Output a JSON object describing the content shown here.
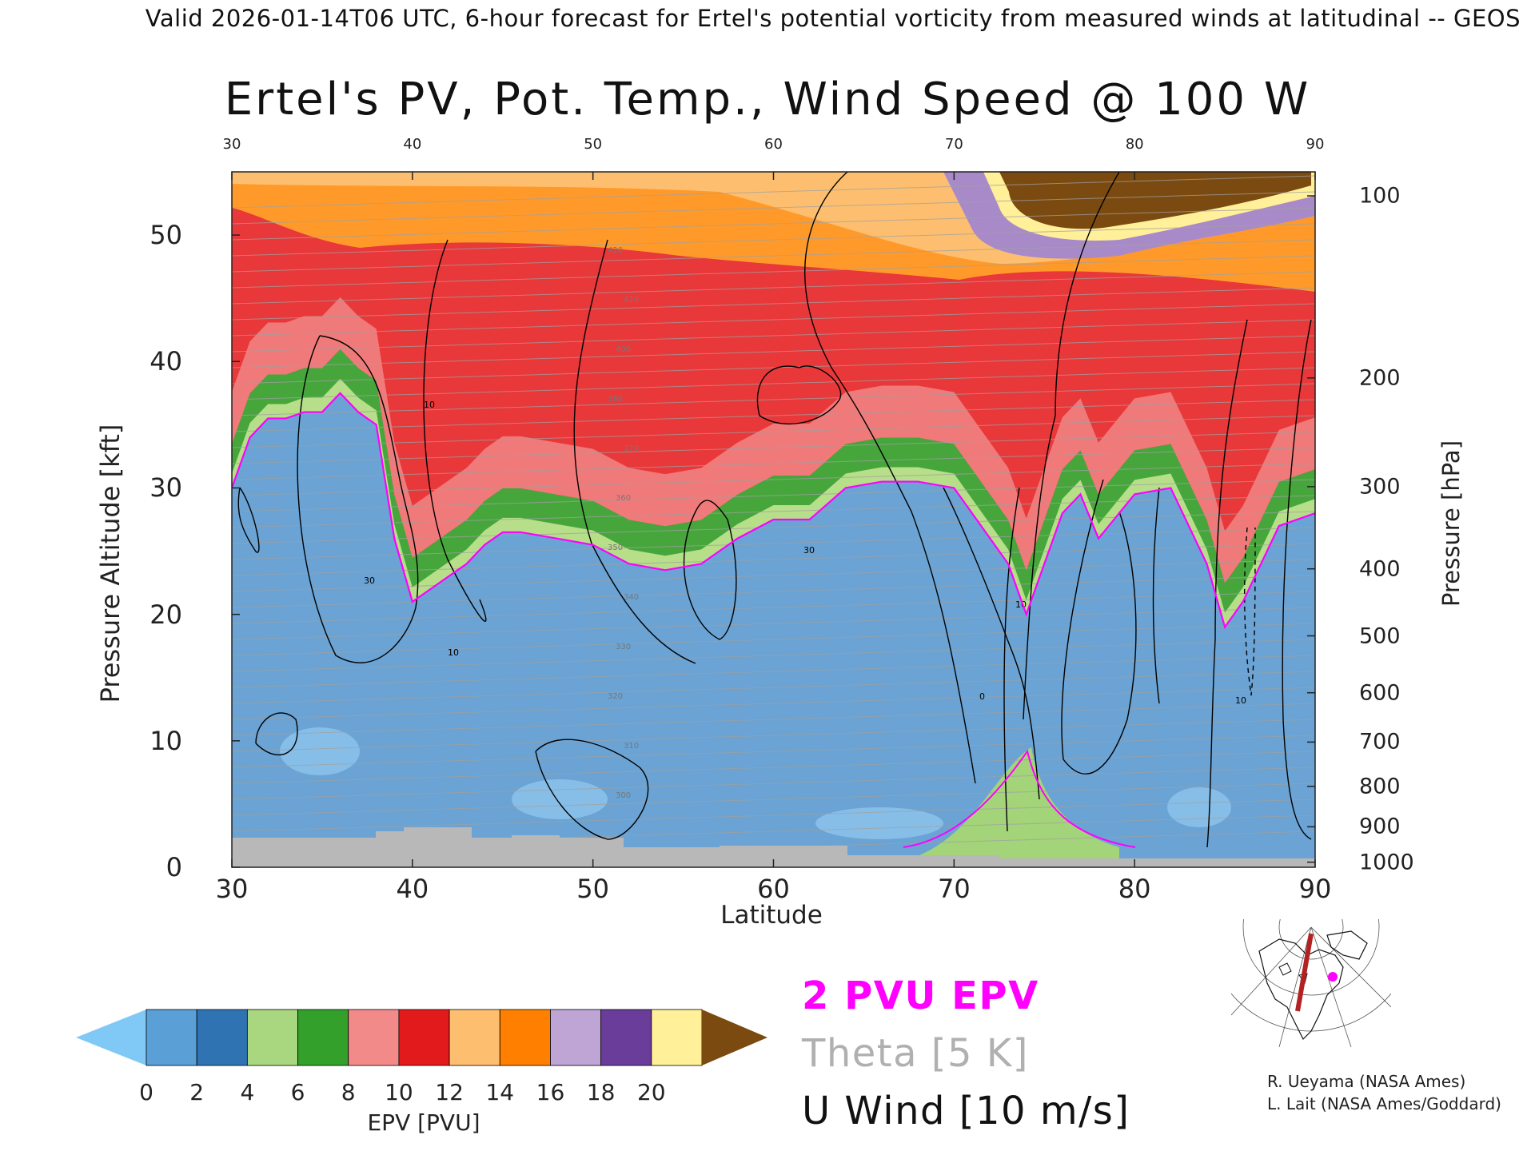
{
  "header": {
    "text": "Valid 2026-01-14T06 UTC, 6-hour forecast for Ertel's potential vorticity from measured winds at latitudinal -- GEOS"
  },
  "chart_data": {
    "type": "heatmap",
    "title": "Ertel's PV, Pot. Temp., Wind Speed @ 100 W",
    "xlabel": "Latitude",
    "ylabel": "Pressure Altitude [kft]",
    "y2label": "Pressure [hPa]",
    "xlim": [
      30,
      90
    ],
    "ylim": [
      0,
      55
    ],
    "x_ticks": [
      "30",
      "40",
      "50",
      "60",
      "70",
      "80",
      "90"
    ],
    "y_ticks": [
      "0",
      "10",
      "20",
      "30",
      "40",
      "50"
    ],
    "pressure_ticks": [
      {
        "label": "100",
        "kft": 53.1
      },
      {
        "label": "200",
        "kft": 38.7
      },
      {
        "label": "300",
        "kft": 30.1
      },
      {
        "label": "400",
        "kft": 23.6
      },
      {
        "label": "500",
        "kft": 18.3
      },
      {
        "label": "600",
        "kft": 13.8
      },
      {
        "label": "700",
        "kft": 9.9
      },
      {
        "label": "800",
        "kft": 6.4
      },
      {
        "label": "900",
        "kft": 3.2
      },
      {
        "label": "1000",
        "kft": 0.4
      }
    ],
    "series": [
      {
        "name": "2 PVU EPV",
        "color": "#ff00ff",
        "x": [
          30,
          31,
          32,
          33,
          34,
          35,
          36,
          37,
          38,
          39,
          40,
          41,
          42,
          43,
          44,
          45,
          46,
          48,
          50,
          52,
          54,
          56,
          58,
          60,
          62,
          64,
          66,
          68,
          70,
          71,
          72,
          73,
          74,
          75,
          76,
          77,
          78,
          80,
          82,
          84,
          85,
          86,
          88,
          90
        ],
        "y": [
          30,
          34,
          35.5,
          35.5,
          36,
          36,
          37.5,
          36,
          35,
          26,
          21,
          22,
          23,
          24,
          25.5,
          26.5,
          26.5,
          26,
          25.5,
          24,
          23.5,
          24,
          26,
          27.5,
          27.5,
          30,
          30.5,
          30.5,
          30,
          28,
          26,
          24,
          20,
          24,
          28,
          29.5,
          26,
          29.5,
          30,
          24,
          19,
          21,
          27,
          28
        ]
      },
      {
        "name": "U Wind [10 m/s]",
        "color": "#000000",
        "labels": [
          "10",
          "30",
          "0"
        ]
      },
      {
        "name": "Theta [5 K]",
        "color": "#a0a0a0",
        "labels": [
          "280",
          "300",
          "310",
          "320",
          "330",
          "340",
          "350",
          "360",
          "370",
          "380",
          "400",
          "410",
          "420"
        ]
      }
    ]
  },
  "colorbar": {
    "label": "EPV [PVU]",
    "ticks": [
      "0",
      "2",
      "4",
      "6",
      "8",
      "10",
      "12",
      "14",
      "16",
      "18",
      "20"
    ],
    "colors": [
      "#5a9fd6",
      "#2f73b3",
      "#a9d77f",
      "#33a02c",
      "#f28a8a",
      "#e31a1c",
      "#fdbf6f",
      "#ff7f00",
      "#bfa4d6",
      "#6a3d9a",
      "#fff099"
    ],
    "under_color": "#80c8f5",
    "over_color": "#7b4a10"
  },
  "legend": {
    "epv": "2 PVU EPV",
    "theta": "Theta [5 K]",
    "uwind": "U Wind [10 m/s]"
  },
  "credits": {
    "line1": "R. Ueyama (NASA Ames)",
    "line2": "L. Lait (NASA Ames/Goddard)"
  },
  "colors": {
    "epv_contour": "#ff00ff",
    "theta": "#a0a0a0",
    "wind": "#000000",
    "terrain": "#b8b8b8"
  }
}
